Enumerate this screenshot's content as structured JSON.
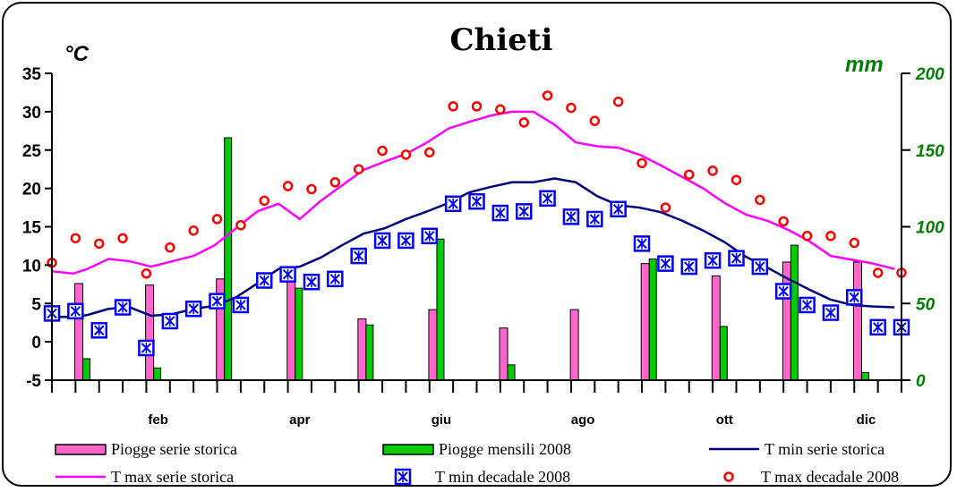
{
  "chart_data": {
    "type": "bar+line+scatter",
    "title": "Chieti",
    "ylabel_left": "°C",
    "ylabel_right": "mm",
    "ylim_left": [
      -5,
      35
    ],
    "yticks_left": [
      35,
      30,
      25,
      20,
      15,
      10,
      5,
      0,
      -5
    ],
    "ylim_right": [
      0,
      200
    ],
    "yticks_right": [
      200,
      150,
      100,
      50,
      0
    ],
    "month_labels": [
      "feb",
      "apr",
      "giu",
      "ago",
      "ott",
      "dic"
    ],
    "month_label_positions": [
      2,
      4,
      6,
      8,
      10,
      12
    ],
    "colors": {
      "piogge_storica": "#ff66cc",
      "piogge_2008": "#00cc00",
      "tmin_storica": "#000080",
      "tmax_storica": "#ff00ff",
      "tmin_dec": "#0000ff",
      "tmax_dec": "#ff0000",
      "right_axis": "#008000"
    },
    "series": [
      {
        "name": "Piogge serie storica",
        "type": "bar",
        "axis": "right",
        "x": [
          1,
          2,
          3,
          4,
          5,
          6,
          7,
          8,
          9,
          10,
          11,
          12
        ],
        "values": [
          63,
          62,
          66,
          67,
          40,
          46,
          34,
          46,
          76,
          68,
          77,
          77
        ]
      },
      {
        "name": "Piogge mensili 2008",
        "type": "bar",
        "axis": "right",
        "x": [
          1,
          2,
          3,
          4,
          5,
          6,
          7,
          8,
          9,
          10,
          11,
          12
        ],
        "values": [
          14,
          8,
          158,
          60,
          36,
          92,
          10,
          0,
          79,
          35,
          88,
          5
        ]
      },
      {
        "name": "T min  serie storica",
        "type": "line",
        "axis": "left",
        "x": [
          0.5,
          0.8,
          1.0,
          1.3,
          1.6,
          1.9,
          2.2,
          2.5,
          2.8,
          3.1,
          3.4,
          3.7,
          4.0,
          4.3,
          4.6,
          4.9,
          5.2,
          5.5,
          5.8,
          6.1,
          6.4,
          6.7,
          7.0,
          7.3,
          7.6,
          7.9,
          8.2,
          8.5,
          8.8,
          9.1,
          9.4,
          9.7,
          10.0,
          10.3,
          10.6,
          10.9,
          11.2,
          11.5,
          11.8,
          12.1,
          12.4
        ],
        "values": [
          3.3,
          3.2,
          3.5,
          4.3,
          4.5,
          3.4,
          3.6,
          4.3,
          4.7,
          5.8,
          7.6,
          9.5,
          9.8,
          11.0,
          12.6,
          14.1,
          14.8,
          16.0,
          17.0,
          18.1,
          19.5,
          20.2,
          20.8,
          20.8,
          21.3,
          20.8,
          19.0,
          17.8,
          17.5,
          16.9,
          15.8,
          14.5,
          13.0,
          11.1,
          9.7,
          8.2,
          6.8,
          5.5,
          4.8,
          4.6,
          4.5
        ]
      },
      {
        "name": "T max serie storica",
        "type": "line",
        "axis": "left",
        "x": [
          0.5,
          0.8,
          1.0,
          1.3,
          1.6,
          1.9,
          2.2,
          2.5,
          2.8,
          3.1,
          3.4,
          3.7,
          4.0,
          4.3,
          4.6,
          4.9,
          5.2,
          5.5,
          5.8,
          6.1,
          6.4,
          6.7,
          7.0,
          7.3,
          7.6,
          7.9,
          8.2,
          8.5,
          8.8,
          9.1,
          9.4,
          9.7,
          10.0,
          10.3,
          10.6,
          10.9,
          11.2,
          11.5,
          11.8,
          12.1,
          12.4
        ],
        "values": [
          9.2,
          8.9,
          9.5,
          10.8,
          10.5,
          9.8,
          10.5,
          11.2,
          12.6,
          14.8,
          17.0,
          18.0,
          16.0,
          18.4,
          20.4,
          22.4,
          23.5,
          24.5,
          26.0,
          27.8,
          28.7,
          29.5,
          30.0,
          30.0,
          28.3,
          26.0,
          25.5,
          25.3,
          24.4,
          23.0,
          21.5,
          20.0,
          18.1,
          16.6,
          15.8,
          14.6,
          13.1,
          11.2,
          10.7,
          10.2,
          9.5
        ]
      },
      {
        "name": "T min  decadale 2008",
        "type": "scatter",
        "axis": "left",
        "x": [
          0.5,
          0.833,
          1.167,
          1.5,
          1.833,
          2.167,
          2.5,
          2.833,
          3.167,
          3.5,
          3.833,
          4.167,
          4.5,
          4.833,
          5.167,
          5.5,
          5.833,
          6.167,
          6.5,
          6.833,
          7.167,
          7.5,
          7.833,
          8.167,
          8.5,
          8.833,
          9.167,
          9.5,
          9.833,
          10.167,
          10.5,
          10.833,
          11.167,
          11.5,
          11.833,
          12.167,
          12.5
        ],
        "values": [
          3.7,
          4.0,
          1.5,
          4.5,
          -0.8,
          2.7,
          4.3,
          5.3,
          4.8,
          8.0,
          8.8,
          7.8,
          8.2,
          11.2,
          13.2,
          13.2,
          13.8,
          18.0,
          18.3,
          16.8,
          17.0,
          18.7,
          16.3,
          16.0,
          17.3,
          12.8,
          10.2,
          9.8,
          10.6,
          10.9,
          9.8,
          6.6,
          4.8,
          3.8,
          5.8,
          1.9,
          1.9
        ]
      },
      {
        "name": "T max  decadale 2008",
        "type": "scatter",
        "axis": "left",
        "x": [
          0.5,
          0.833,
          1.167,
          1.5,
          1.833,
          2.167,
          2.5,
          2.833,
          3.167,
          3.5,
          3.833,
          4.167,
          4.5,
          4.833,
          5.167,
          5.5,
          5.833,
          6.167,
          6.5,
          6.833,
          7.167,
          7.5,
          7.833,
          8.167,
          8.5,
          8.833,
          9.167,
          9.5,
          9.833,
          10.167,
          10.5,
          10.833,
          11.167,
          11.5,
          11.833,
          12.167,
          12.5
        ],
        "values": [
          10.3,
          13.5,
          12.8,
          13.5,
          8.9,
          12.3,
          14.5,
          16.0,
          15.2,
          18.4,
          20.3,
          19.9,
          20.8,
          22.5,
          24.9,
          24.4,
          24.7,
          30.7,
          30.7,
          30.3,
          28.6,
          32.1,
          30.5,
          28.8,
          31.3,
          23.3,
          17.5,
          21.8,
          22.3,
          21.1,
          18.5,
          15.7,
          13.8,
          13.8,
          12.9,
          9.0,
          9.0
        ]
      }
    ],
    "legend": {
      "placement": "bottom",
      "items": [
        {
          "label": "Piogge serie storica",
          "symbol": "bar-pink"
        },
        {
          "label": "Piogge mensili 2008",
          "symbol": "bar-green"
        },
        {
          "label": "T min  serie storica",
          "symbol": "line-navy"
        },
        {
          "label": "T max serie storica",
          "symbol": "line-magenta"
        },
        {
          "label": "T min  decadale 2008",
          "symbol": "x-box-blue"
        },
        {
          "label": "T max  decadale 2008",
          "symbol": "circle-red"
        }
      ]
    }
  }
}
